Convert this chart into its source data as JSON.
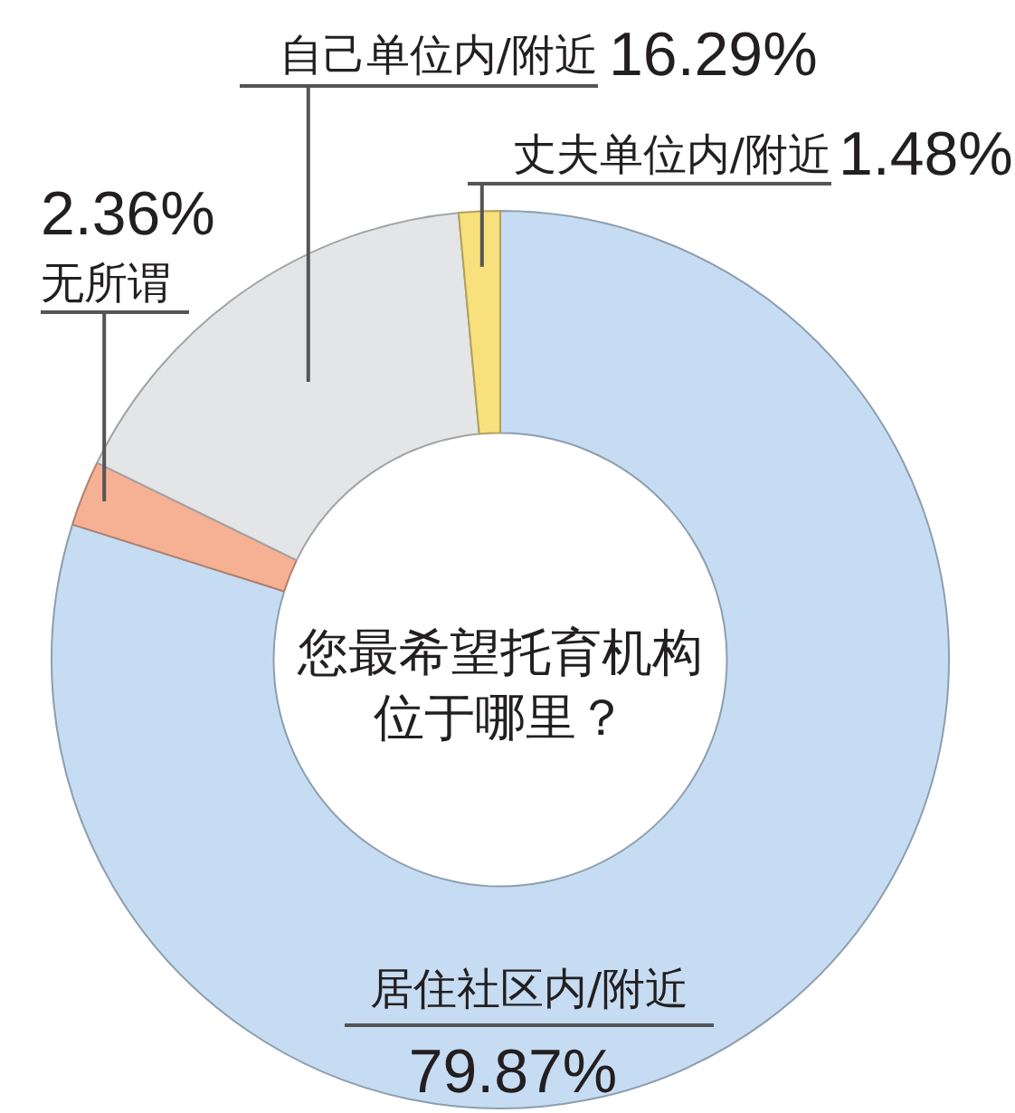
{
  "chart_data": {
    "type": "donut",
    "title": "您最希望托育机构位于哪里？",
    "categories": [
      "居住社区内/附近",
      "无所谓",
      "自己单位内/附近",
      "丈夫单位内/附近"
    ],
    "values": [
      79.87,
      2.36,
      16.29,
      1.48
    ],
    "colors": [
      "#c5dcf2",
      "#f6b194",
      "#e3e5e6",
      "#f8e07c"
    ],
    "value_labels": [
      "79.87%",
      "2.36%",
      "16.29%",
      "1.48%"
    ]
  }
}
